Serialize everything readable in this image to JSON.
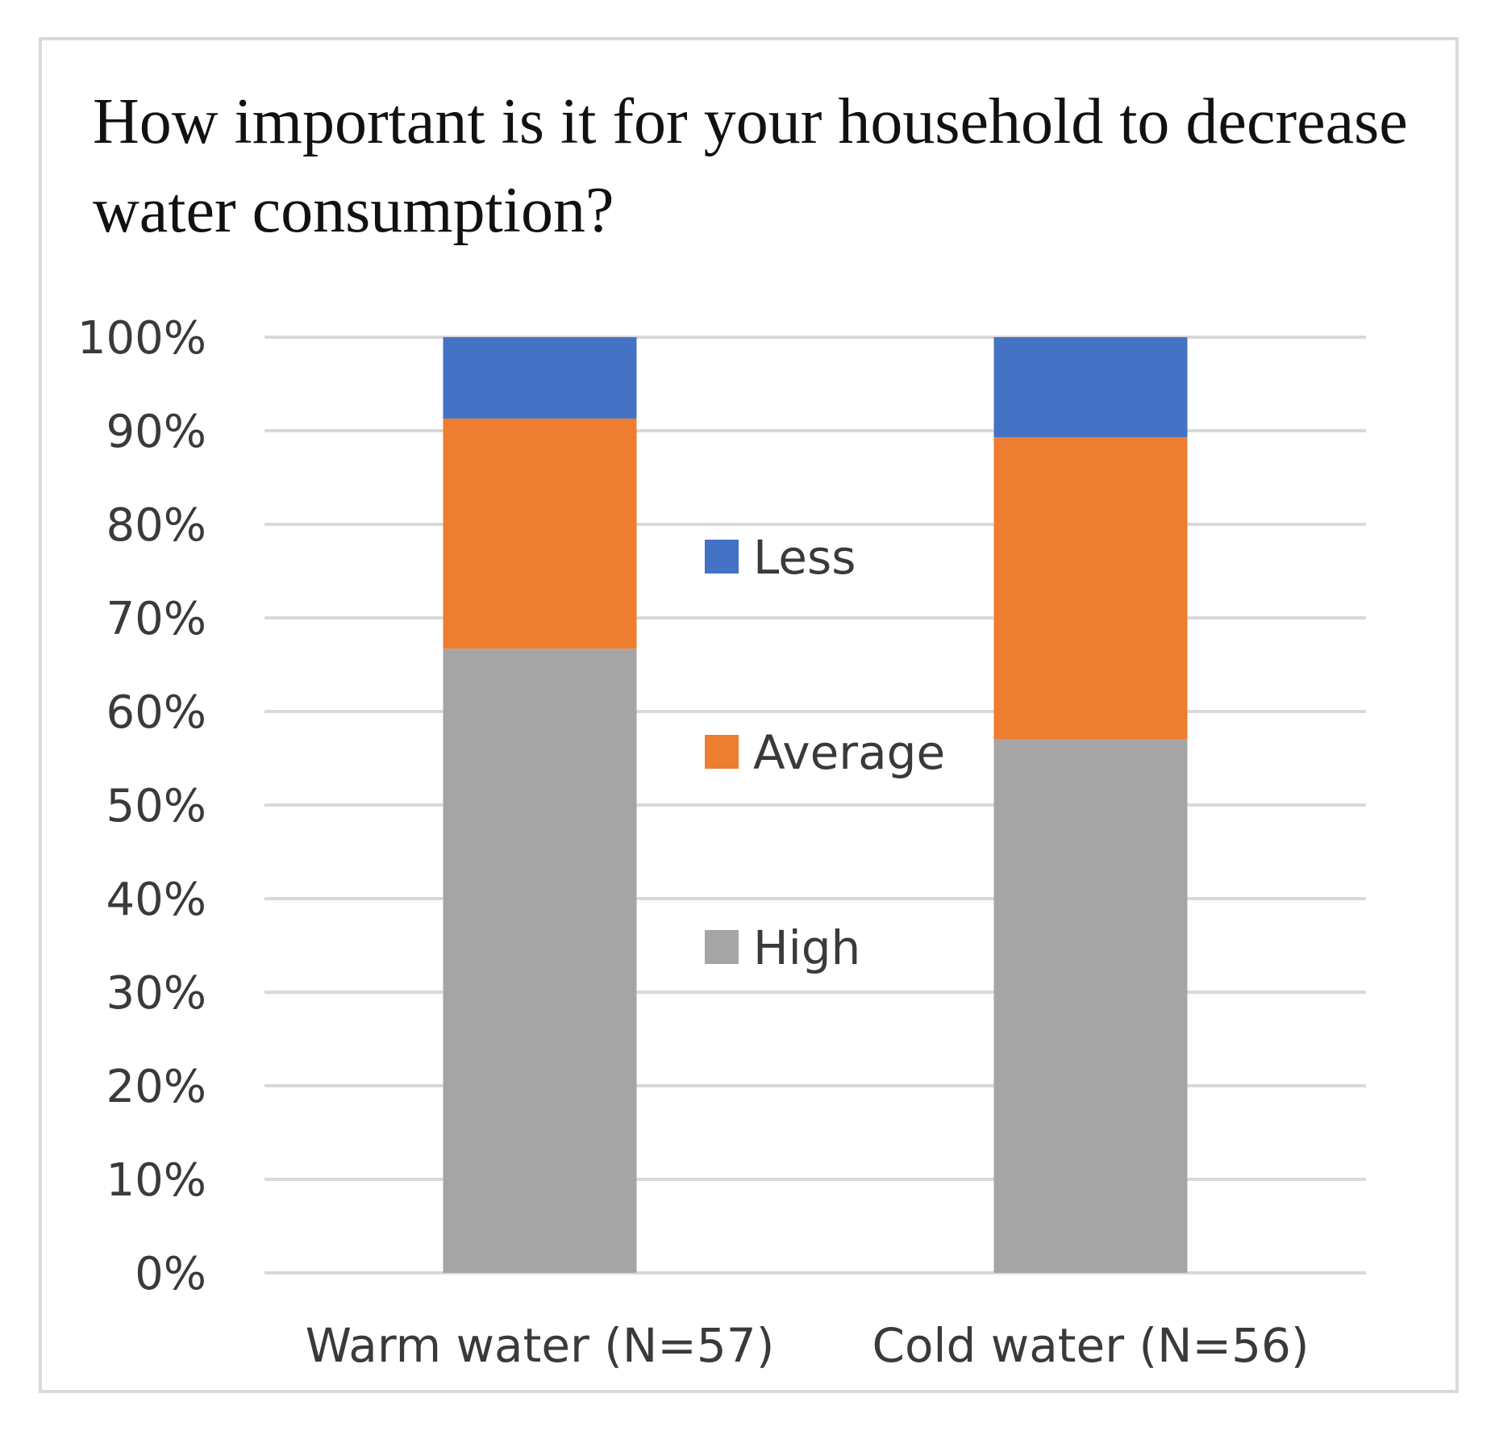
{
  "chart_data": {
    "type": "bar",
    "stacked": true,
    "title": "How important is it for your household to decrease water consumption?",
    "xlabel": "",
    "ylabel": "",
    "categories": [
      "Warm water (N=57)",
      "Cold water (N=56)"
    ],
    "series": [
      {
        "name": "High",
        "color": "#a5a5a5",
        "values": [
          66.7,
          57.0
        ]
      },
      {
        "name": "Average",
        "color": "#ed7d31",
        "values": [
          24.6,
          32.3
        ]
      },
      {
        "name": "Less",
        "color": "#4472c4",
        "values": [
          8.7,
          10.7
        ]
      }
    ],
    "ylim": [
      0,
      100
    ],
    "yticks": [
      "0%",
      "10%",
      "20%",
      "30%",
      "40%",
      "50%",
      "60%",
      "70%",
      "80%",
      "90%",
      "100%"
    ],
    "legend_order": [
      "Less",
      "Average",
      "High"
    ],
    "legend_position": "center",
    "grid": true
  }
}
